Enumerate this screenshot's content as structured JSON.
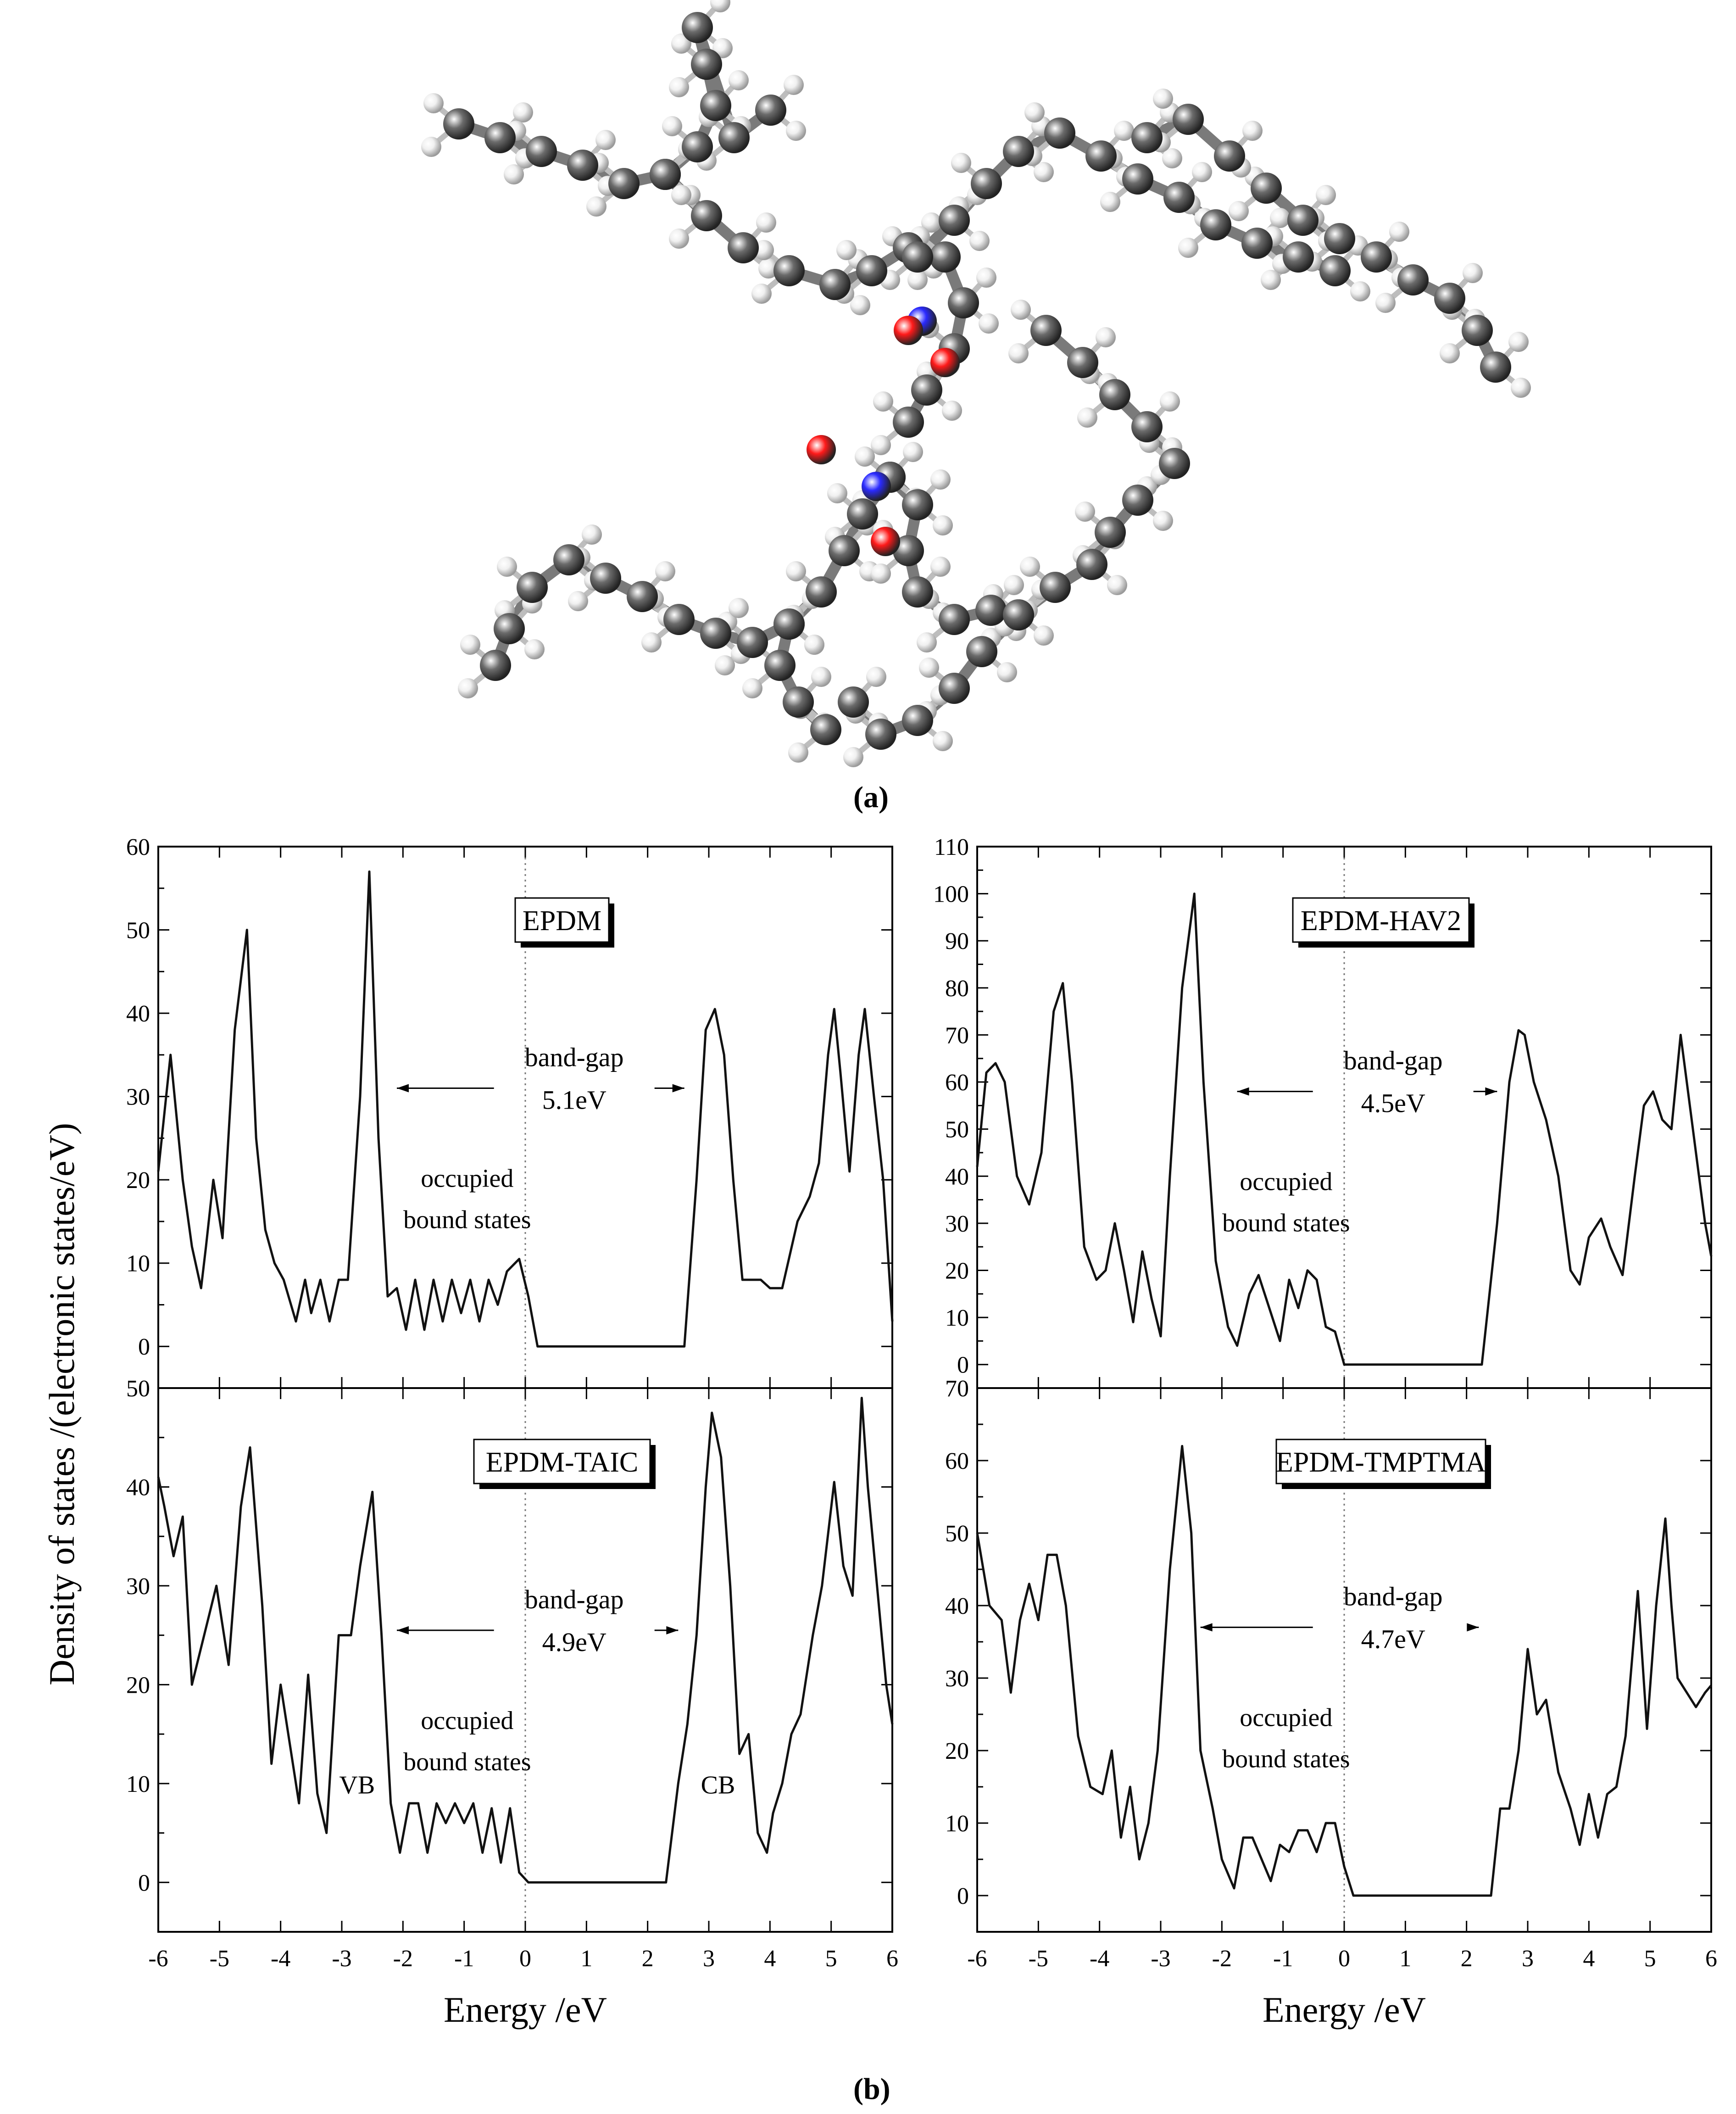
{
  "panel_labels": {
    "a": "(a)",
    "b": "(b)"
  },
  "molecule": {
    "atom_colors": {
      "carbon": "#6b6b6b",
      "hydrogen": "#f0f0f0",
      "nitrogen": "#2a2aff",
      "oxygen": "#ff1a1a"
    }
  },
  "shared_axes": {
    "ylabel": "Density of states /(electronic states/eV)",
    "xlabel": "Energy /eV"
  },
  "chart_data": [
    {
      "type": "line",
      "title": "EPDM",
      "xlim": [
        -6,
        6
      ],
      "ylim": [
        -5,
        60
      ],
      "xticks": [
        -6,
        -5,
        -4,
        -3,
        -2,
        -1,
        0,
        1,
        2,
        3,
        4,
        5,
        6
      ],
      "yticks": [
        0,
        10,
        20,
        30,
        40,
        50,
        60
      ],
      "show_x_tick_labels": false,
      "annotations": {
        "gap_label": "band-gap",
        "gap_value": "5.1eV",
        "occ_line1": "occupied",
        "occ_line2": "bound states",
        "vb": "",
        "cb": ""
      },
      "arrows": {
        "left_x": -2.1,
        "right_x": 2.6,
        "y": 31
      },
      "series": [
        {
          "x": [
            -6.0,
            -5.8,
            -5.6,
            -5.45,
            -5.3,
            -5.22,
            -5.1,
            -4.95,
            -4.75,
            -4.55,
            -4.4,
            -4.25,
            -4.1,
            -3.95,
            -3.75,
            -3.6,
            -3.5,
            -3.35,
            -3.2,
            -3.05,
            -2.9,
            -2.7,
            -2.55,
            -2.4,
            -2.25,
            -2.1,
            -1.95,
            -1.8,
            -1.65,
            -1.5,
            -1.35,
            -1.2,
            -1.05,
            -0.9,
            -0.75,
            -0.6,
            -0.45,
            -0.3,
            -0.1,
            0.05,
            0.2,
            0.4,
            0.6,
            1.0,
            2.0,
            2.6,
            2.8,
            2.95,
            3.1,
            3.25,
            3.4,
            3.55,
            3.7,
            3.85,
            4.0,
            4.2,
            4.45,
            4.65,
            4.8,
            4.95,
            5.05,
            5.15,
            5.3,
            5.45,
            5.55,
            5.7,
            5.85,
            6.0
          ],
          "y": [
            21,
            35,
            20,
            12,
            7,
            12,
            20,
            13,
            38,
            50,
            25,
            14,
            10,
            8,
            3,
            8,
            4,
            8,
            3,
            8,
            8,
            30,
            57,
            25,
            6,
            7,
            2,
            8,
            2,
            8,
            3,
            8,
            4,
            8,
            3,
            8,
            5,
            9,
            10.5,
            6,
            0,
            0,
            0,
            0,
            0,
            0,
            20,
            38,
            40.5,
            35,
            20,
            8,
            8,
            8,
            7,
            7,
            15,
            18,
            22,
            35,
            40.5,
            33,
            21,
            35,
            40.5,
            30,
            20,
            3
          ]
        }
      ]
    },
    {
      "type": "line",
      "title": "EPDM-HAV2",
      "xlim": [
        -6,
        6
      ],
      "ylim": [
        -5,
        110
      ],
      "xticks": [
        -6,
        -5,
        -4,
        -3,
        -2,
        -1,
        0,
        1,
        2,
        3,
        4,
        5,
        6
      ],
      "yticks": [
        0,
        10,
        20,
        30,
        40,
        50,
        60,
        70,
        80,
        90,
        100,
        110
      ],
      "show_x_tick_labels": false,
      "annotations": {
        "gap_label": "band-gap",
        "gap_value": "4.5eV",
        "occ_line1": "occupied",
        "occ_line2": "bound states",
        "vb": "",
        "cb": ""
      },
      "arrows": {
        "left_x": -1.75,
        "right_x": 2.5,
        "y": 58
      },
      "series": [
        {
          "x": [
            -6.0,
            -5.85,
            -5.7,
            -5.55,
            -5.35,
            -5.15,
            -4.95,
            -4.75,
            -4.6,
            -4.45,
            -4.25,
            -4.05,
            -3.9,
            -3.75,
            -3.6,
            -3.45,
            -3.3,
            -3.15,
            -3.0,
            -2.85,
            -2.65,
            -2.45,
            -2.3,
            -2.1,
            -1.9,
            -1.75,
            -1.55,
            -1.4,
            -1.2,
            -1.05,
            -0.9,
            -0.75,
            -0.6,
            -0.45,
            -0.3,
            -0.15,
            0.0,
            0.15,
            0.4,
            1.0,
            2.0,
            2.25,
            2.5,
            2.7,
            2.85,
            2.95,
            3.1,
            3.3,
            3.5,
            3.7,
            3.85,
            4.0,
            4.2,
            4.35,
            4.55,
            4.75,
            4.9,
            5.05,
            5.2,
            5.35,
            5.5,
            5.6,
            5.75,
            5.9,
            6.0
          ],
          "y": [
            42,
            62,
            64,
            60,
            40,
            34,
            45,
            75,
            81,
            60,
            25,
            18,
            20,
            30,
            20,
            9,
            24,
            14,
            6,
            40,
            80,
            100,
            60,
            22,
            8,
            4,
            15,
            19,
            11,
            5,
            18,
            12,
            20,
            18,
            8,
            7,
            0,
            0,
            0,
            0,
            0,
            0,
            30,
            60,
            71,
            70,
            60,
            52,
            40,
            20,
            17,
            27,
            31,
            25,
            19,
            40,
            55,
            58,
            52,
            50,
            70,
            60,
            45,
            30,
            23
          ]
        }
      ]
    },
    {
      "type": "line",
      "title": "EPDM-TAIC",
      "xlim": [
        -6,
        6
      ],
      "ylim": [
        -5,
        50
      ],
      "xticks": [
        -6,
        -5,
        -4,
        -3,
        -2,
        -1,
        0,
        1,
        2,
        3,
        4,
        5,
        6
      ],
      "yticks": [
        0,
        10,
        20,
        30,
        40,
        50
      ],
      "show_x_tick_labels": true,
      "annotations": {
        "gap_label": "band-gap",
        "gap_value": "4.9eV",
        "occ_line1": "occupied",
        "occ_line2": "bound states",
        "vb": "VB",
        "cb": "CB"
      },
      "arrows": {
        "left_x": -2.1,
        "right_x": 2.5,
        "y": 25.5
      },
      "series": [
        {
          "x": [
            -6.0,
            -5.9,
            -5.75,
            -5.6,
            -5.45,
            -5.25,
            -5.05,
            -4.85,
            -4.65,
            -4.5,
            -4.3,
            -4.15,
            -4.0,
            -3.85,
            -3.7,
            -3.55,
            -3.4,
            -3.25,
            -3.05,
            -2.85,
            -2.7,
            -2.5,
            -2.35,
            -2.2,
            -2.05,
            -1.9,
            -1.75,
            -1.6,
            -1.45,
            -1.3,
            -1.15,
            -1.0,
            -0.85,
            -0.7,
            -0.55,
            -0.4,
            -0.25,
            -0.1,
            0.05,
            0.2,
            0.4,
            1.0,
            2.0,
            2.3,
            2.5,
            2.65,
            2.8,
            2.95,
            3.05,
            3.2,
            3.35,
            3.5,
            3.65,
            3.8,
            3.95,
            4.05,
            4.2,
            4.35,
            4.5,
            4.7,
            4.85,
            5.05,
            5.2,
            5.35,
            5.5,
            5.6,
            5.75,
            5.9,
            6.0
          ],
          "y": [
            41,
            38,
            33,
            37,
            20,
            25,
            30,
            22,
            38,
            44,
            28,
            12,
            20,
            14,
            8,
            21,
            9,
            5,
            25,
            25,
            32,
            39.5,
            25,
            8,
            3,
            8,
            8,
            3,
            8,
            6,
            8,
            6,
            8,
            3,
            7.5,
            2,
            7.5,
            1,
            0,
            0,
            0,
            0,
            0,
            0,
            10,
            16,
            25,
            40,
            47.5,
            43,
            30,
            13,
            15,
            5,
            3,
            7,
            10,
            15,
            17,
            25,
            30,
            40.5,
            32,
            29,
            49,
            40,
            30,
            20,
            16
          ]
        }
      ]
    },
    {
      "type": "line",
      "title": "EPDM-TMPTMA",
      "xlim": [
        -6,
        6
      ],
      "ylim": [
        -5,
        70
      ],
      "xticks": [
        -6,
        -5,
        -4,
        -3,
        -2,
        -1,
        0,
        1,
        2,
        3,
        4,
        5,
        6
      ],
      "yticks": [
        0,
        10,
        20,
        30,
        40,
        50,
        60,
        70
      ],
      "show_x_tick_labels": true,
      "annotations": {
        "gap_label": "band-gap",
        "gap_value": "4.7eV",
        "occ_line1": "occupied",
        "occ_line2": "bound states",
        "vb": "",
        "cb": ""
      },
      "arrows": {
        "left_x": -2.35,
        "right_x": 2.2,
        "y": 37
      },
      "series": [
        {
          "x": [
            -6.0,
            -5.8,
            -5.6,
            -5.45,
            -5.3,
            -5.15,
            -5.0,
            -4.85,
            -4.7,
            -4.55,
            -4.35,
            -4.15,
            -3.95,
            -3.8,
            -3.65,
            -3.5,
            -3.35,
            -3.2,
            -3.05,
            -2.85,
            -2.65,
            -2.5,
            -2.35,
            -2.15,
            -2.0,
            -1.8,
            -1.65,
            -1.5,
            -1.35,
            -1.2,
            -1.05,
            -0.9,
            -0.75,
            -0.6,
            -0.45,
            -0.3,
            -0.15,
            0.0,
            0.15,
            0.3,
            1.0,
            2.0,
            2.2,
            2.4,
            2.55,
            2.7,
            2.85,
            3.0,
            3.15,
            3.3,
            3.5,
            3.7,
            3.85,
            4.0,
            4.15,
            4.3,
            4.45,
            4.6,
            4.8,
            4.95,
            5.1,
            5.25,
            5.35,
            5.45,
            5.6,
            5.75,
            5.9,
            6.0
          ],
          "y": [
            50,
            40,
            38,
            28,
            38,
            43,
            38,
            47,
            47,
            40,
            22,
            15,
            14,
            20,
            8,
            15,
            5,
            10,
            20,
            45,
            62,
            50,
            20,
            12,
            5,
            1,
            8,
            8,
            5,
            2,
            7,
            6,
            9,
            9,
            6,
            10,
            10,
            4,
            0,
            0,
            0,
            0,
            0,
            0,
            12,
            12,
            20,
            34,
            25,
            27,
            17,
            12,
            7,
            14,
            8,
            14,
            15,
            22,
            42,
            23,
            40,
            52,
            40,
            30,
            28,
            26,
            28,
            29
          ]
        }
      ]
    }
  ]
}
